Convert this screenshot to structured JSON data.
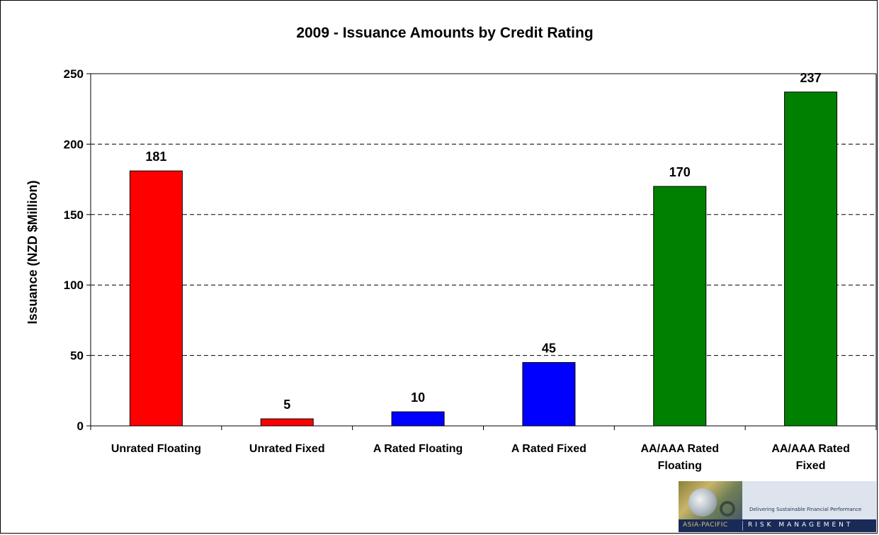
{
  "chart_data": {
    "type": "bar",
    "title": "2009 - Issuance Amounts by Credit Rating",
    "ylabel": "Issuance (NZD $Million)",
    "xlabel": "",
    "ylim": [
      0,
      250
    ],
    "yticks": [
      0,
      50,
      100,
      150,
      200,
      250
    ],
    "grid": "horizontal dashed",
    "legend": "none",
    "categories": [
      [
        "Unrated Floating"
      ],
      [
        "Unrated Fixed"
      ],
      [
        "A Rated Floating"
      ],
      [
        "A Rated Fixed"
      ],
      [
        "AA/AAA Rated",
        "Floating"
      ],
      [
        "AA/AAA Rated",
        "Fixed"
      ]
    ],
    "values": [
      181,
      5,
      10,
      45,
      170,
      237
    ],
    "data_labels": [
      "181",
      "5",
      "10",
      "45",
      "170",
      "237"
    ],
    "colors": [
      "#ff0000",
      "#ff0000",
      "#0000ff",
      "#0000ff",
      "#008000",
      "#008000"
    ]
  },
  "logo": {
    "tagline": "Delivering Sustainable Financial Performance",
    "left_text": "ASIA-PACIFIC",
    "right_text": "RISK MANAGEMENT"
  }
}
